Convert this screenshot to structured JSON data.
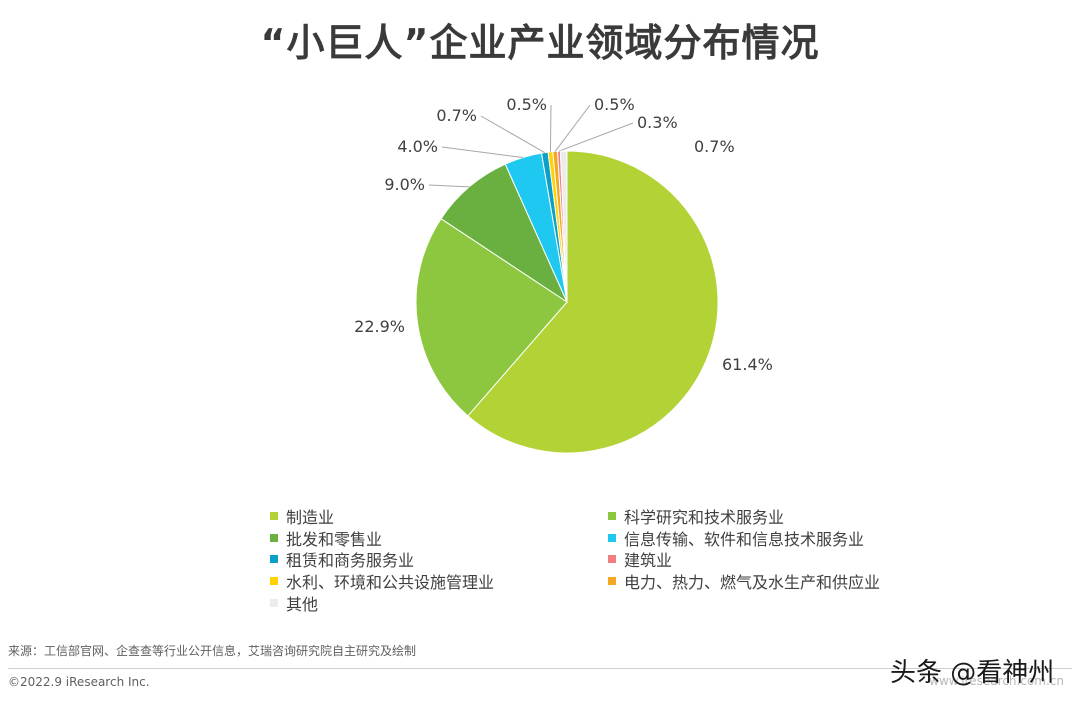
{
  "title": "“小巨人”企业产业领域分布情况",
  "chart_data": {
    "type": "pie",
    "title": "“小巨人”企业产业领域分布情况",
    "series": [
      {
        "name": "制造业",
        "value": 61.4,
        "label": "61.4%",
        "color": "#b2d235"
      },
      {
        "name": "科学研究和技术服务业",
        "value": 22.9,
        "label": "22.9%",
        "color": "#8dc63f"
      },
      {
        "name": "批发和零售业",
        "value": 9.0,
        "label": "9.0%",
        "color": "#6ab041"
      },
      {
        "name": "信息传输、软件和信息技术服务业",
        "value": 4.0,
        "label": "4.0%",
        "color": "#1ec8f0"
      },
      {
        "name": "租赁和商务服务业",
        "value": 0.7,
        "label": "0.7%",
        "color": "#0aa0c8"
      },
      {
        "name": "水利、环境和公共设施管理业",
        "value": 0.5,
        "label": "0.5%",
        "color": "#ffd200"
      },
      {
        "name": "电力、热力、燃气及水生产和供应业",
        "value": 0.5,
        "label": "0.5%",
        "color": "#f5a623"
      },
      {
        "name": "建筑业",
        "value": 0.3,
        "label": "0.3%",
        "color": "#f08080"
      },
      {
        "name": "其他",
        "value": 0.7,
        "label": "0.7%",
        "color": "#ececec"
      }
    ],
    "legend_order": [
      "制造业",
      "科学研究和技术服务业",
      "批发和零售业",
      "信息传输、软件和信息技术服务业",
      "租赁和商务服务业",
      "建筑业",
      "水利、环境和公共设施管理业",
      "电力、热力、燃气及水生产和供应业",
      "其他"
    ],
    "legend_placement": "bottom"
  },
  "footer": {
    "source": "来源：工信部官网、企查查等行业公开信息，艾瑞咨询研究院自主研究及绘制",
    "copyright": "©2022.9 iResearch Inc.",
    "url": "www.iresearch.com.cn"
  },
  "watermark": "头条 @看神州"
}
